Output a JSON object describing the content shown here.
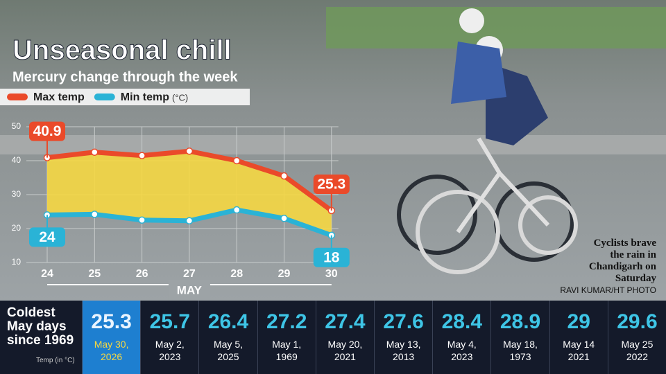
{
  "chart_data": {
    "type": "line",
    "title": "Unseasonal chill",
    "subtitle": "Mercury change through the week",
    "x_label": "MAY",
    "unit_label": "(°C)",
    "categories": [
      "24",
      "25",
      "26",
      "27",
      "28",
      "29",
      "30"
    ],
    "series": [
      {
        "name": "Max temp",
        "color": "#ea4a2a",
        "values": [
          40.9,
          42.5,
          41.5,
          42.8,
          40,
          35.5,
          25.3
        ]
      },
      {
        "name": "Min temp",
        "color": "#2ab3d6",
        "values": [
          24,
          24.2,
          22.5,
          22.3,
          25.5,
          23,
          18
        ]
      }
    ],
    "fill_color": "#f5d742",
    "ylim": [
      10,
      50
    ],
    "yticks": [
      10,
      20,
      30,
      40,
      50
    ],
    "grid": true
  },
  "caption": {
    "text": "Cyclists brave the rain in Chandigarh on Saturday",
    "credit": "RAVI KUMAR/HT PHOTO"
  },
  "table": {
    "title": "Coldest May days since 1969",
    "note": "Temp (in °C)",
    "rows": [
      {
        "value": "25.3",
        "date": "May 30, 2026"
      },
      {
        "value": "25.7",
        "date": "May 2, 2023"
      },
      {
        "value": "26.4",
        "date": "May 5, 2025"
      },
      {
        "value": "27.2",
        "date": "May 1, 1969"
      },
      {
        "value": "27.4",
        "date": "May 20, 2021"
      },
      {
        "value": "27.6",
        "date": "May 13, 2013"
      },
      {
        "value": "28.4",
        "date": "May 4, 2023"
      },
      {
        "value": "28.9",
        "date": "May 18, 1973"
      },
      {
        "value": "29",
        "date": "May 14 2021"
      },
      {
        "value": "29.6",
        "date": "May 25 2022"
      }
    ]
  }
}
